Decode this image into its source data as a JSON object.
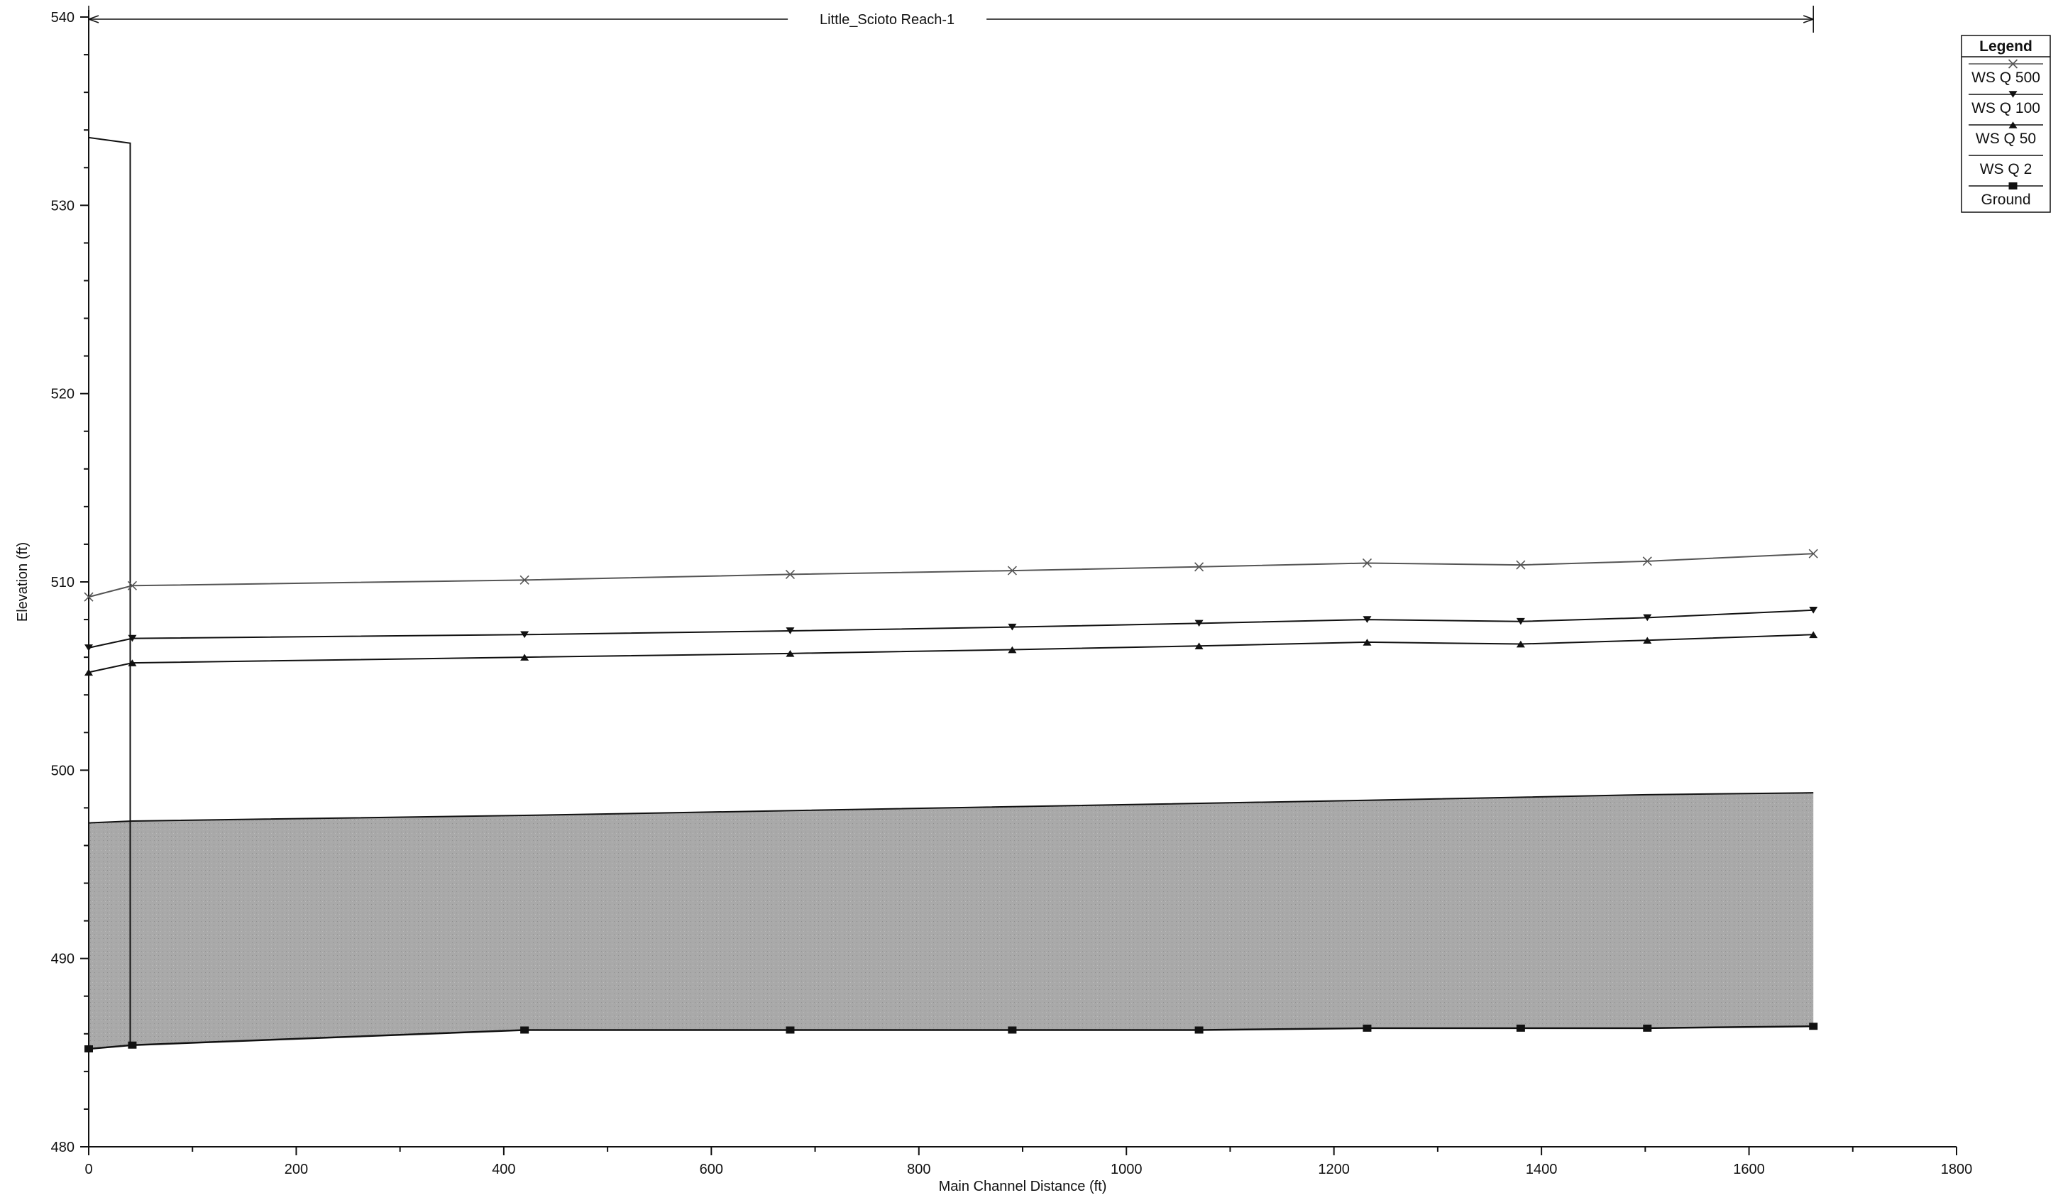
{
  "chart_data": {
    "type": "line",
    "title": "",
    "reach_label": "Little_Scioto Reach-1",
    "xlabel": "Main Channel Distance (ft)",
    "ylabel": "Elevation (ft)",
    "xlim": [
      0,
      1800
    ],
    "ylim": [
      480,
      540
    ],
    "xticks": [
      0,
      200,
      400,
      600,
      800,
      1000,
      1200,
      1400,
      1600,
      1800
    ],
    "yticks": [
      480,
      490,
      500,
      510,
      520,
      530,
      540
    ],
    "grid": false,
    "legend": {
      "title": "Legend",
      "position": "top-right"
    },
    "x": [
      0,
      42,
      420,
      676,
      890,
      1070,
      1232,
      1380,
      1502,
      1662
    ],
    "series": [
      {
        "name": "WS  Q 500",
        "marker": "x",
        "color": "#555555",
        "values": [
          509.2,
          509.8,
          510.1,
          510.4,
          510.6,
          510.8,
          511.0,
          510.9,
          511.1,
          511.5
        ]
      },
      {
        "name": "WS  Q 100",
        "marker": "triangle-down",
        "color": "#111111",
        "values": [
          506.5,
          507.0,
          507.2,
          507.4,
          507.6,
          507.8,
          508.0,
          507.9,
          508.1,
          508.5
        ]
      },
      {
        "name": "WS  Q 50",
        "marker": "triangle-up",
        "color": "#111111",
        "values": [
          505.2,
          505.7,
          506.0,
          506.2,
          506.4,
          506.6,
          506.8,
          506.7,
          506.9,
          507.2
        ]
      },
      {
        "name": "WS  Q 2",
        "marker": "none",
        "color": "#111111",
        "x": [
          0,
          42,
          420,
          1232,
          1502,
          1662
        ],
        "values": [
          497.2,
          497.3,
          497.6,
          498.4,
          498.7,
          498.8
        ]
      },
      {
        "name": "Ground",
        "marker": "square",
        "color": "#111111",
        "values": [
          485.2,
          485.4,
          486.2,
          486.2,
          486.2,
          486.2,
          486.3,
          486.3,
          486.3,
          486.4
        ]
      }
    ],
    "structure": {
      "x_start": 0,
      "x_end": 40,
      "top_left": 533.6,
      "top_right": 533.3,
      "bottom": 485.3
    }
  }
}
